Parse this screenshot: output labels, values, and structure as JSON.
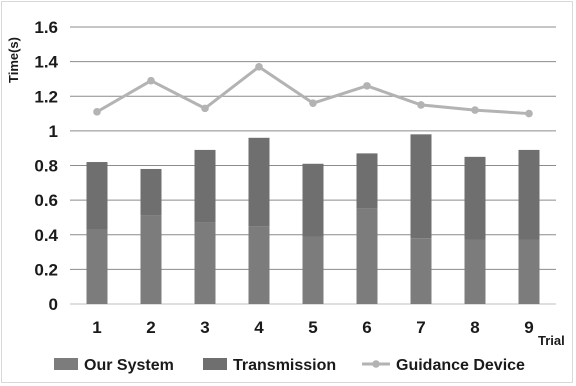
{
  "chart_data": {
    "type": "bar",
    "xlabel": "Trial",
    "ylabel": "Time(s)",
    "ylim": [
      0,
      1.6
    ],
    "yticks": [
      "0",
      "0.2",
      "0.4",
      "0.6",
      "0.8",
      "1",
      "1.2",
      "1.4",
      "1.6"
    ],
    "grid": true,
    "legend_position": "bottom",
    "categories": [
      "1",
      "2",
      "3",
      "4",
      "5",
      "6",
      "7",
      "8",
      "9"
    ],
    "series": [
      {
        "name": "Our System",
        "kind": "bar",
        "stack": "bottom",
        "color": "#7c7c7c",
        "values": [
          0.43,
          0.51,
          0.47,
          0.45,
          0.39,
          0.55,
          0.38,
          0.37,
          0.37
        ]
      },
      {
        "name": "Transmission",
        "kind": "bar",
        "stack": "top",
        "color": "#6f6f6f",
        "values": [
          0.39,
          0.27,
          0.42,
          0.51,
          0.42,
          0.32,
          0.6,
          0.48,
          0.52
        ]
      },
      {
        "name": "Guidance Device",
        "kind": "line",
        "color": "#b3b3b3",
        "values": [
          1.11,
          1.29,
          1.13,
          1.37,
          1.16,
          1.26,
          1.15,
          1.12,
          1.1
        ]
      }
    ]
  }
}
